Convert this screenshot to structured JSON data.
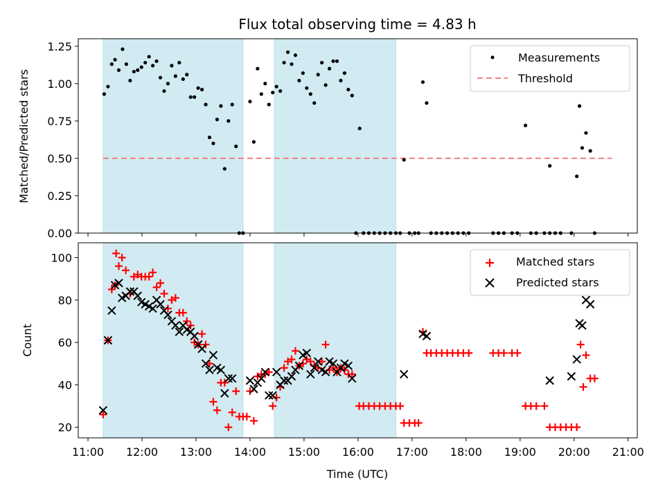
{
  "chart_data": {
    "title": "Flux total observing time = 4.83 h",
    "xlabel": "Time (UTC)",
    "x_ticks": [
      {
        "h": 11,
        "label": "11:00"
      },
      {
        "h": 12,
        "label": "12:00"
      },
      {
        "h": 13,
        "label": "13:00"
      },
      {
        "h": 14,
        "label": "14:00"
      },
      {
        "h": 15,
        "label": "15:00"
      },
      {
        "h": 16,
        "label": "16:00"
      },
      {
        "h": 17,
        "label": "17:00"
      },
      {
        "h": 18,
        "label": "18:00"
      },
      {
        "h": 19,
        "label": "19:00"
      },
      {
        "h": 20,
        "label": "20:00"
      },
      {
        "h": 21,
        "label": "21:00"
      }
    ],
    "xlim": [
      10.82,
      21.17
    ],
    "shaded_intervals": [
      [
        11.28,
        13.87
      ],
      [
        14.45,
        16.7
      ]
    ],
    "shade_color": "#add8e6",
    "top": {
      "type": "scatter",
      "ylabel": "Matched/Predicted stars",
      "ylim": [
        0,
        1.3
      ],
      "y_ticks": [
        {
          "v": 0.0,
          "label": "0.00"
        },
        {
          "v": 0.25,
          "label": "0.25"
        },
        {
          "v": 0.5,
          "label": "0.50"
        },
        {
          "v": 0.75,
          "label": "0.75"
        },
        {
          "v": 1.0,
          "label": "1.00"
        },
        {
          "v": 1.25,
          "label": "1.25"
        }
      ],
      "threshold": {
        "value": 0.5,
        "x_start": 11.28,
        "x_end": 20.7,
        "color": "#f08080"
      },
      "legend": [
        {
          "label": "Measurements",
          "marker": "dot"
        },
        {
          "label": "Threshold",
          "marker": "dashed-line"
        }
      ],
      "measurements": [
        [
          11.3,
          0.93
        ],
        [
          11.37,
          0.98
        ],
        [
          11.44,
          1.13
        ],
        [
          11.5,
          1.16
        ],
        [
          11.57,
          1.09
        ],
        [
          11.64,
          1.23
        ],
        [
          11.71,
          1.13
        ],
        [
          11.78,
          1.02
        ],
        [
          11.85,
          1.08
        ],
        [
          11.92,
          1.09
        ],
        [
          11.99,
          1.11
        ],
        [
          12.06,
          1.14
        ],
        [
          12.13,
          1.18
        ],
        [
          12.2,
          1.12
        ],
        [
          12.27,
          1.15
        ],
        [
          12.34,
          1.04
        ],
        [
          12.41,
          0.95
        ],
        [
          12.48,
          1.0
        ],
        [
          12.55,
          1.12
        ],
        [
          12.62,
          1.05
        ],
        [
          12.69,
          1.14
        ],
        [
          12.76,
          1.03
        ],
        [
          12.83,
          1.06
        ],
        [
          12.9,
          0.91
        ],
        [
          12.97,
          0.91
        ],
        [
          13.04,
          0.97
        ],
        [
          13.11,
          0.96
        ],
        [
          13.18,
          0.86
        ],
        [
          13.25,
          0.64
        ],
        [
          13.32,
          0.6
        ],
        [
          13.39,
          0.76
        ],
        [
          13.46,
          0.85
        ],
        [
          13.53,
          0.43
        ],
        [
          13.6,
          0.75
        ],
        [
          13.67,
          0.86
        ],
        [
          13.74,
          0.58
        ],
        [
          13.8,
          0.0
        ],
        [
          13.87,
          0.0
        ],
        [
          14.0,
          0.88
        ],
        [
          14.07,
          0.61
        ],
        [
          14.14,
          1.1
        ],
        [
          14.21,
          0.93
        ],
        [
          14.28,
          1.0
        ],
        [
          14.35,
          0.86
        ],
        [
          14.42,
          0.94
        ],
        [
          14.49,
          0.98
        ],
        [
          14.56,
          0.95
        ],
        [
          14.63,
          1.14
        ],
        [
          14.7,
          1.21
        ],
        [
          14.77,
          1.13
        ],
        [
          14.84,
          1.19
        ],
        [
          14.91,
          1.02
        ],
        [
          14.98,
          1.07
        ],
        [
          15.05,
          0.97
        ],
        [
          15.12,
          0.93
        ],
        [
          15.19,
          0.87
        ],
        [
          15.26,
          1.06
        ],
        [
          15.33,
          1.14
        ],
        [
          15.4,
          0.99
        ],
        [
          15.47,
          1.1
        ],
        [
          15.54,
          1.15
        ],
        [
          15.61,
          1.15
        ],
        [
          15.68,
          1.02
        ],
        [
          15.75,
          1.07
        ],
        [
          15.82,
          0.96
        ],
        [
          15.89,
          0.92
        ],
        [
          15.96,
          0.0
        ],
        [
          16.03,
          0.7
        ],
        [
          16.1,
          0.0
        ],
        [
          16.2,
          0.0
        ],
        [
          16.3,
          0.0
        ],
        [
          16.4,
          0.0
        ],
        [
          16.5,
          0.0
        ],
        [
          16.6,
          0.0
        ],
        [
          16.7,
          0.0
        ],
        [
          16.78,
          0.0
        ],
        [
          16.85,
          0.49
        ],
        [
          16.95,
          0.0
        ],
        [
          17.05,
          0.0
        ],
        [
          17.12,
          0.0
        ],
        [
          17.2,
          1.01
        ],
        [
          17.27,
          0.87
        ],
        [
          17.35,
          0.0
        ],
        [
          17.45,
          0.0
        ],
        [
          17.55,
          0.0
        ],
        [
          17.65,
          0.0
        ],
        [
          17.75,
          0.0
        ],
        [
          17.85,
          0.0
        ],
        [
          17.95,
          0.0
        ],
        [
          18.05,
          0.0
        ],
        [
          18.5,
          0.0
        ],
        [
          18.6,
          0.0
        ],
        [
          18.7,
          0.0
        ],
        [
          18.85,
          0.0
        ],
        [
          18.95,
          0.0
        ],
        [
          19.1,
          0.72
        ],
        [
          19.2,
          0.0
        ],
        [
          19.3,
          0.0
        ],
        [
          19.45,
          0.0
        ],
        [
          19.55,
          0.0
        ],
        [
          19.65,
          0.0
        ],
        [
          19.75,
          0.0
        ],
        [
          19.55,
          0.45
        ],
        [
          19.95,
          0.0
        ],
        [
          20.05,
          0.38
        ],
        [
          20.1,
          0.85
        ],
        [
          20.15,
          0.57
        ],
        [
          20.22,
          0.67
        ],
        [
          20.3,
          0.55
        ],
        [
          20.38,
          0.0
        ]
      ]
    },
    "bottom": {
      "type": "scatter",
      "ylabel": "Count",
      "ylim": [
        15,
        107
      ],
      "y_ticks": [
        {
          "v": 20,
          "label": "20"
        },
        {
          "v": 40,
          "label": "40"
        },
        {
          "v": 60,
          "label": "60"
        },
        {
          "v": 80,
          "label": "80"
        },
        {
          "v": 100,
          "label": "100"
        }
      ],
      "legend": [
        {
          "label": "Matched stars",
          "marker": "plus",
          "color": "#ff0000"
        },
        {
          "label": "Predicted stars",
          "marker": "x",
          "color": "#000000"
        }
      ],
      "matched_stars": [
        [
          11.28,
          26
        ],
        [
          11.37,
          61
        ],
        [
          11.44,
          85
        ],
        [
          11.5,
          87
        ],
        [
          11.57,
          96
        ],
        [
          11.52,
          102
        ],
        [
          11.63,
          100
        ],
        [
          11.7,
          94
        ],
        [
          11.78,
          83
        ],
        [
          11.85,
          91
        ],
        [
          11.92,
          92
        ],
        [
          11.99,
          91
        ],
        [
          12.06,
          91
        ],
        [
          12.13,
          91
        ],
        [
          12.2,
          93
        ],
        [
          12.27,
          86
        ],
        [
          12.34,
          88
        ],
        [
          12.41,
          83
        ],
        [
          12.48,
          76
        ],
        [
          12.55,
          80
        ],
        [
          12.62,
          81
        ],
        [
          12.69,
          74
        ],
        [
          12.76,
          74
        ],
        [
          12.83,
          70
        ],
        [
          12.9,
          68
        ],
        [
          12.97,
          60
        ],
        [
          13.04,
          59
        ],
        [
          13.11,
          64
        ],
        [
          13.18,
          59
        ],
        [
          13.25,
          50
        ],
        [
          13.32,
          32
        ],
        [
          13.39,
          28
        ],
        [
          13.46,
          41
        ],
        [
          13.53,
          41
        ],
        [
          13.6,
          20
        ],
        [
          13.67,
          27
        ],
        [
          13.74,
          37
        ],
        [
          13.8,
          25
        ],
        [
          13.87,
          25
        ],
        [
          13.94,
          25
        ],
        [
          14.0,
          37
        ],
        [
          14.07,
          23
        ],
        [
          14.14,
          44
        ],
        [
          14.21,
          45
        ],
        [
          14.28,
          45
        ],
        [
          14.35,
          46
        ],
        [
          14.42,
          30
        ],
        [
          14.49,
          34
        ],
        [
          14.56,
          39
        ],
        [
          14.63,
          48
        ],
        [
          14.7,
          51
        ],
        [
          14.77,
          52
        ],
        [
          14.84,
          56
        ],
        [
          14.91,
          49
        ],
        [
          14.98,
          50
        ],
        [
          15.05,
          52
        ],
        [
          15.12,
          51
        ],
        [
          15.19,
          49
        ],
        [
          15.26,
          48
        ],
        [
          15.33,
          51
        ],
        [
          15.4,
          59
        ],
        [
          15.47,
          47
        ],
        [
          15.54,
          48
        ],
        [
          15.61,
          46
        ],
        [
          15.68,
          48
        ],
        [
          15.75,
          47
        ],
        [
          15.82,
          45
        ],
        [
          15.89,
          45
        ],
        [
          16.02,
          30
        ],
        [
          16.1,
          30
        ],
        [
          16.2,
          30
        ],
        [
          16.3,
          30
        ],
        [
          16.4,
          30
        ],
        [
          16.5,
          30
        ],
        [
          16.6,
          30
        ],
        [
          16.7,
          30
        ],
        [
          16.78,
          30
        ],
        [
          16.85,
          22
        ],
        [
          16.95,
          22
        ],
        [
          17.05,
          22
        ],
        [
          17.12,
          22
        ],
        [
          17.2,
          65
        ],
        [
          17.27,
          55
        ],
        [
          17.35,
          55
        ],
        [
          17.45,
          55
        ],
        [
          17.55,
          55
        ],
        [
          17.65,
          55
        ],
        [
          17.75,
          55
        ],
        [
          17.85,
          55
        ],
        [
          17.95,
          55
        ],
        [
          18.05,
          55
        ],
        [
          18.5,
          55
        ],
        [
          18.6,
          55
        ],
        [
          18.7,
          55
        ],
        [
          18.85,
          55
        ],
        [
          18.95,
          55
        ],
        [
          19.1,
          30
        ],
        [
          19.2,
          30
        ],
        [
          19.3,
          30
        ],
        [
          19.45,
          30
        ],
        [
          19.55,
          20
        ],
        [
          19.65,
          20
        ],
        [
          19.75,
          20
        ],
        [
          19.85,
          20
        ],
        [
          19.95,
          20
        ],
        [
          20.05,
          20
        ],
        [
          20.12,
          59
        ],
        [
          20.17,
          39
        ],
        [
          20.22,
          54
        ],
        [
          20.3,
          43
        ],
        [
          20.38,
          43
        ]
      ],
      "predicted_stars": [
        [
          11.28,
          28
        ],
        [
          11.37,
          61
        ],
        [
          11.44,
          75
        ],
        [
          11.5,
          87
        ],
        [
          11.57,
          88
        ],
        [
          11.63,
          81
        ],
        [
          11.7,
          82
        ],
        [
          11.78,
          84
        ],
        [
          11.85,
          84
        ],
        [
          11.92,
          82
        ],
        [
          11.99,
          79
        ],
        [
          12.06,
          78
        ],
        [
          12.13,
          77
        ],
        [
          12.2,
          76
        ],
        [
          12.27,
          80
        ],
        [
          12.34,
          78
        ],
        [
          12.41,
          75
        ],
        [
          12.48,
          73
        ],
        [
          12.55,
          70
        ],
        [
          12.62,
          68
        ],
        [
          12.69,
          65
        ],
        [
          12.76,
          68
        ],
        [
          12.83,
          66
        ],
        [
          12.9,
          65
        ],
        [
          12.97,
          63
        ],
        [
          13.04,
          59
        ],
        [
          13.11,
          57
        ],
        [
          13.18,
          50
        ],
        [
          13.25,
          47
        ],
        [
          13.32,
          54
        ],
        [
          13.39,
          48
        ],
        [
          13.46,
          47
        ],
        [
          13.53,
          36
        ],
        [
          13.6,
          43
        ],
        [
          13.67,
          43
        ],
        [
          14.0,
          42
        ],
        [
          14.07,
          38
        ],
        [
          14.14,
          41
        ],
        [
          14.21,
          43
        ],
        [
          14.28,
          46
        ],
        [
          14.35,
          35
        ],
        [
          14.42,
          35
        ],
        [
          14.49,
          46
        ],
        [
          14.56,
          40
        ],
        [
          14.63,
          42
        ],
        [
          14.7,
          42
        ],
        [
          14.77,
          44
        ],
        [
          14.84,
          47
        ],
        [
          14.91,
          49
        ],
        [
          14.98,
          54
        ],
        [
          15.05,
          55
        ],
        [
          15.12,
          45
        ],
        [
          15.19,
          48
        ],
        [
          15.26,
          51
        ],
        [
          15.33,
          47
        ],
        [
          15.4,
          46
        ],
        [
          15.47,
          51
        ],
        [
          15.54,
          50
        ],
        [
          15.61,
          46
        ],
        [
          15.68,
          48
        ],
        [
          15.75,
          50
        ],
        [
          15.82,
          49
        ],
        [
          15.89,
          43
        ],
        [
          16.85,
          45
        ],
        [
          17.2,
          64
        ],
        [
          17.27,
          63
        ],
        [
          19.55,
          42
        ],
        [
          19.95,
          44
        ],
        [
          20.05,
          52
        ],
        [
          20.1,
          69
        ],
        [
          20.15,
          68
        ],
        [
          20.22,
          80
        ],
        [
          20.3,
          78
        ]
      ]
    }
  }
}
